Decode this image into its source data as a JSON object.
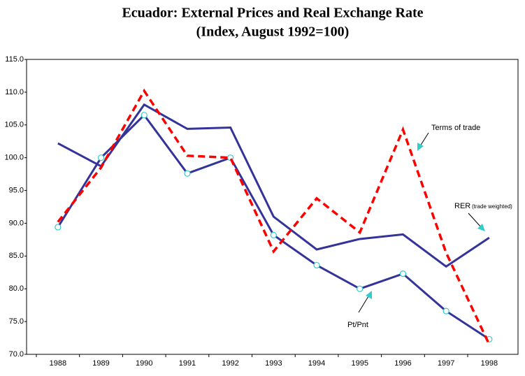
{
  "chart_data": {
    "type": "line",
    "title": "Ecuador: External Prices and Real Exchange Rate",
    "subtitle": "(Index, August 1992=100)",
    "categories": [
      "1988",
      "1989",
      "1990",
      "1991",
      "1992",
      "1993",
      "1994",
      "1995",
      "1996",
      "1997",
      "1998"
    ],
    "series": [
      {
        "name": "RER",
        "color": "#333399",
        "dashed": false,
        "markers": false,
        "values": [
          102.2,
          98.7,
          108.1,
          104.4,
          104.6,
          91.0,
          86.0,
          87.6,
          88.3,
          83.4,
          87.8
        ]
      },
      {
        "name": "Pt/Pnt",
        "color": "#333399",
        "dashed": false,
        "markers": true,
        "values": [
          89.4,
          100.0,
          106.5,
          97.6,
          100.0,
          88.2,
          83.6,
          80.0,
          82.3,
          76.6,
          72.3
        ]
      },
      {
        "name": "Terms of trade",
        "color": "#ff0000",
        "dashed": true,
        "markers": false,
        "values": [
          90.2,
          98.5,
          110.2,
          100.3,
          100.0,
          85.7,
          93.8,
          88.6,
          104.3,
          85.5,
          71.5
        ]
      }
    ],
    "annotations": [
      "(trade weighted)"
    ],
    "ylim": [
      70,
      115
    ],
    "yticks": [
      {
        "value": 70,
        "label": "70.0"
      },
      {
        "value": 75,
        "label": "75.0"
      },
      {
        "value": 80,
        "label": "80.0"
      },
      {
        "value": 85,
        "label": "85.0"
      },
      {
        "value": 90,
        "label": "90.0"
      },
      {
        "value": 95,
        "label": "95.0"
      },
      {
        "value": 100,
        "label": "100.0"
      },
      {
        "value": 105,
        "label": "105.0"
      },
      {
        "value": 110,
        "label": "110.0"
      },
      {
        "value": 115,
        "label": "115.0"
      }
    ],
    "grid": false
  }
}
